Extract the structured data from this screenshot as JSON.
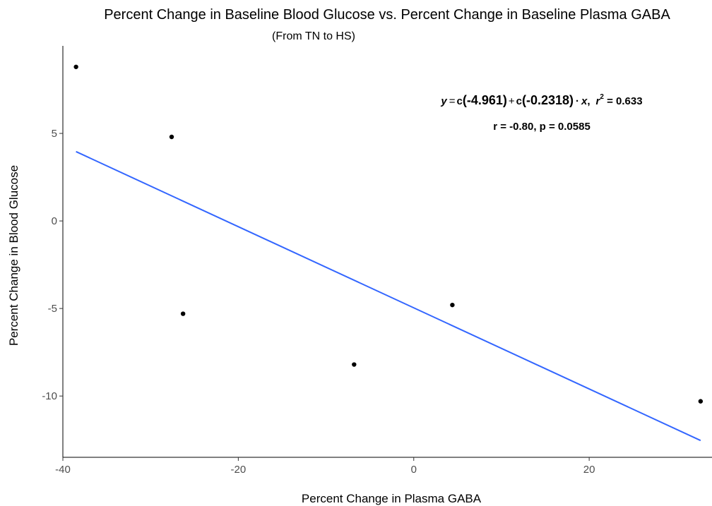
{
  "chart_data": {
    "type": "scatter",
    "title": "Percent Change in Baseline Blood Glucose vs. Percent Change in Baseline Plasma GABA",
    "subtitle": "(From TN to HS)",
    "xlabel": "Percent Change in Plasma GABA",
    "ylabel": "Percent Change in Blood Glucose",
    "xlim": [
      -40,
      34
    ],
    "ylim": [
      -13.5,
      10
    ],
    "xticks": [
      -40,
      -20,
      0,
      20
    ],
    "xtick_labels": [
      "-40",
      "-20",
      "0",
      "20"
    ],
    "yticks": [
      -10,
      -5,
      0,
      5
    ],
    "ytick_labels": [
      "-10",
      "-5",
      "0",
      "5"
    ],
    "grid": false,
    "points": [
      {
        "x": -38.5,
        "y": 8.8
      },
      {
        "x": -27.6,
        "y": 4.8
      },
      {
        "x": -26.3,
        "y": -5.3
      },
      {
        "x": -6.8,
        "y": -8.2
      },
      {
        "x": 4.4,
        "y": -4.8
      },
      {
        "x": 32.7,
        "y": -10.3
      }
    ],
    "fit_line": {
      "x": [
        -38.5,
        32.7
      ],
      "y": [
        3.96,
        -12.54
      ],
      "color": "#3366ff"
    },
    "point_color": "#000000",
    "annotation": {
      "y_sym": "y",
      "eq_sign": "=",
      "c1": "c",
      "v1": "(-4.961)",
      "plus": "+",
      "c2": "c",
      "v2": "(-0.2318)",
      "dot": "·",
      "x_sym": "x",
      "comma": ",",
      "r_sym": "r",
      "r_exp": "2",
      "r2_val": " = 0.633",
      "line2": "r = -0.80,  p = 0.0585"
    }
  }
}
